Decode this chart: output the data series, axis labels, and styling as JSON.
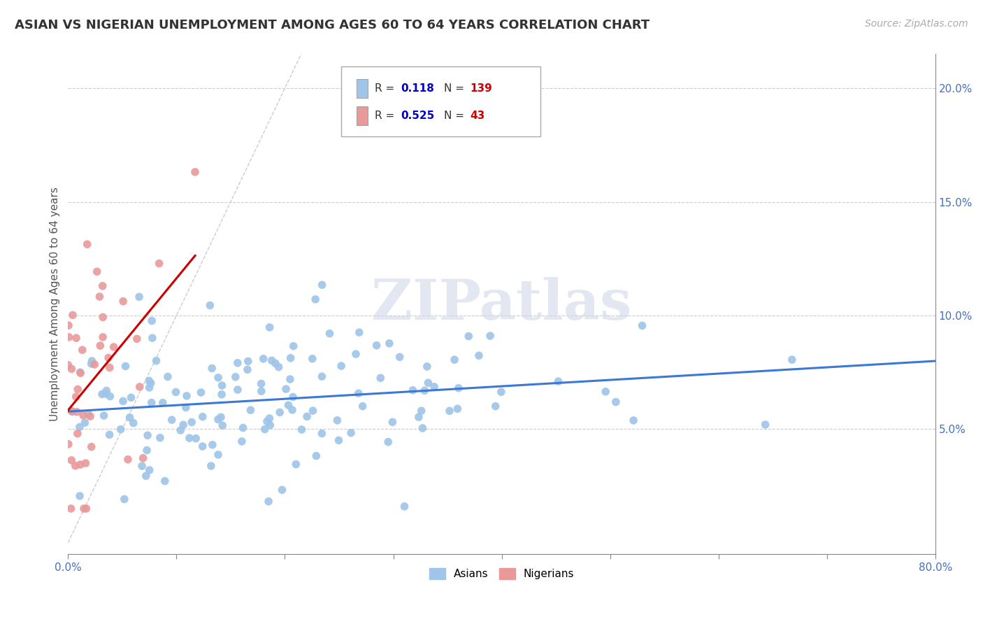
{
  "title": "ASIAN VS NIGERIAN UNEMPLOYMENT AMONG AGES 60 TO 64 YEARS CORRELATION CHART",
  "source": "Source: ZipAtlas.com",
  "ylabel": "Unemployment Among Ages 60 to 64 years",
  "xlim": [
    0.0,
    0.8
  ],
  "ylim": [
    -0.005,
    0.215
  ],
  "ytick_positions": [
    0.05,
    0.1,
    0.15,
    0.2
  ],
  "ytick_labels": [
    "5.0%",
    "10.0%",
    "15.0%",
    "20.0%"
  ],
  "xtick_positions": [
    0.0,
    0.1,
    0.2,
    0.3,
    0.4,
    0.5,
    0.6,
    0.7,
    0.8
  ],
  "xtick_labels": [
    "0.0%",
    "",
    "",
    "",
    "",
    "",
    "",
    "",
    "80.0%"
  ],
  "asian_color": "#9fc5e8",
  "nigerian_color": "#ea9999",
  "asian_line_color": "#3c78d8",
  "nigerian_line_color": "#cc0000",
  "asian_R": 0.118,
  "asian_N": 139,
  "nigerian_R": 0.525,
  "nigerian_N": 43,
  "legend_R_color": "#0000cc",
  "legend_N_color": "#cc0000",
  "watermark": "ZIPatlas",
  "background_color": "#ffffff",
  "title_fontsize": 13,
  "axis_label_fontsize": 11,
  "tick_fontsize": 11,
  "source_fontsize": 10
}
